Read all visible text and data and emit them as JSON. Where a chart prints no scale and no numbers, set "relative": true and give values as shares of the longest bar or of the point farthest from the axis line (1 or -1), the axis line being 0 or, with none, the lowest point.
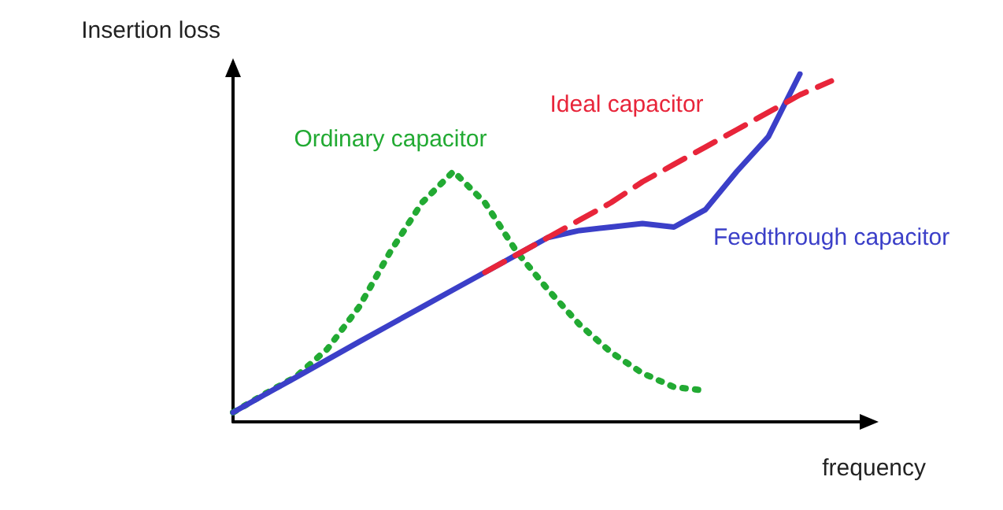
{
  "chart_data": {
    "type": "line",
    "relative": true,
    "xlabel": "frequency",
    "ylabel": "Insertion loss",
    "marker": "none",
    "categories": [
      null,
      null,
      null,
      null,
      null,
      null,
      null,
      null,
      null,
      null,
      null,
      null,
      null,
      null,
      null,
      null,
      null,
      null,
      null,
      null,
      null
    ],
    "series": [
      {
        "name": "Ordinary capacitor",
        "color": "#22aa33",
        "line_style": "dotted",
        "values": [
          0.027,
          0.08,
          0.13,
          0.21,
          0.33,
          0.49,
          0.63,
          0.72,
          0.63,
          0.49,
          0.38,
          0.28,
          0.2,
          0.14,
          0.1,
          0.09,
          null,
          null,
          null,
          null,
          null
        ]
      },
      {
        "name": "Ideal capacitor",
        "color": "#e8253a",
        "line_style": "dashed",
        "values": [
          null,
          null,
          null,
          null,
          null,
          null,
          null,
          null,
          0.43,
          0.48,
          0.53,
          0.58,
          0.63,
          0.69,
          0.74,
          0.79,
          0.84,
          0.89,
          0.94,
          0.98,
          null
        ]
      },
      {
        "name": "Feedthrough capacitor",
        "color": "#3b3fc8",
        "line_style": "solid",
        "values": [
          0.027,
          0.078,
          0.128,
          0.179,
          0.23,
          0.28,
          0.33,
          0.38,
          0.43,
          0.48,
          0.53,
          0.55,
          0.56,
          0.57,
          0.56,
          0.61,
          0.72,
          0.82,
          1.0,
          null,
          null
        ]
      }
    ]
  }
}
